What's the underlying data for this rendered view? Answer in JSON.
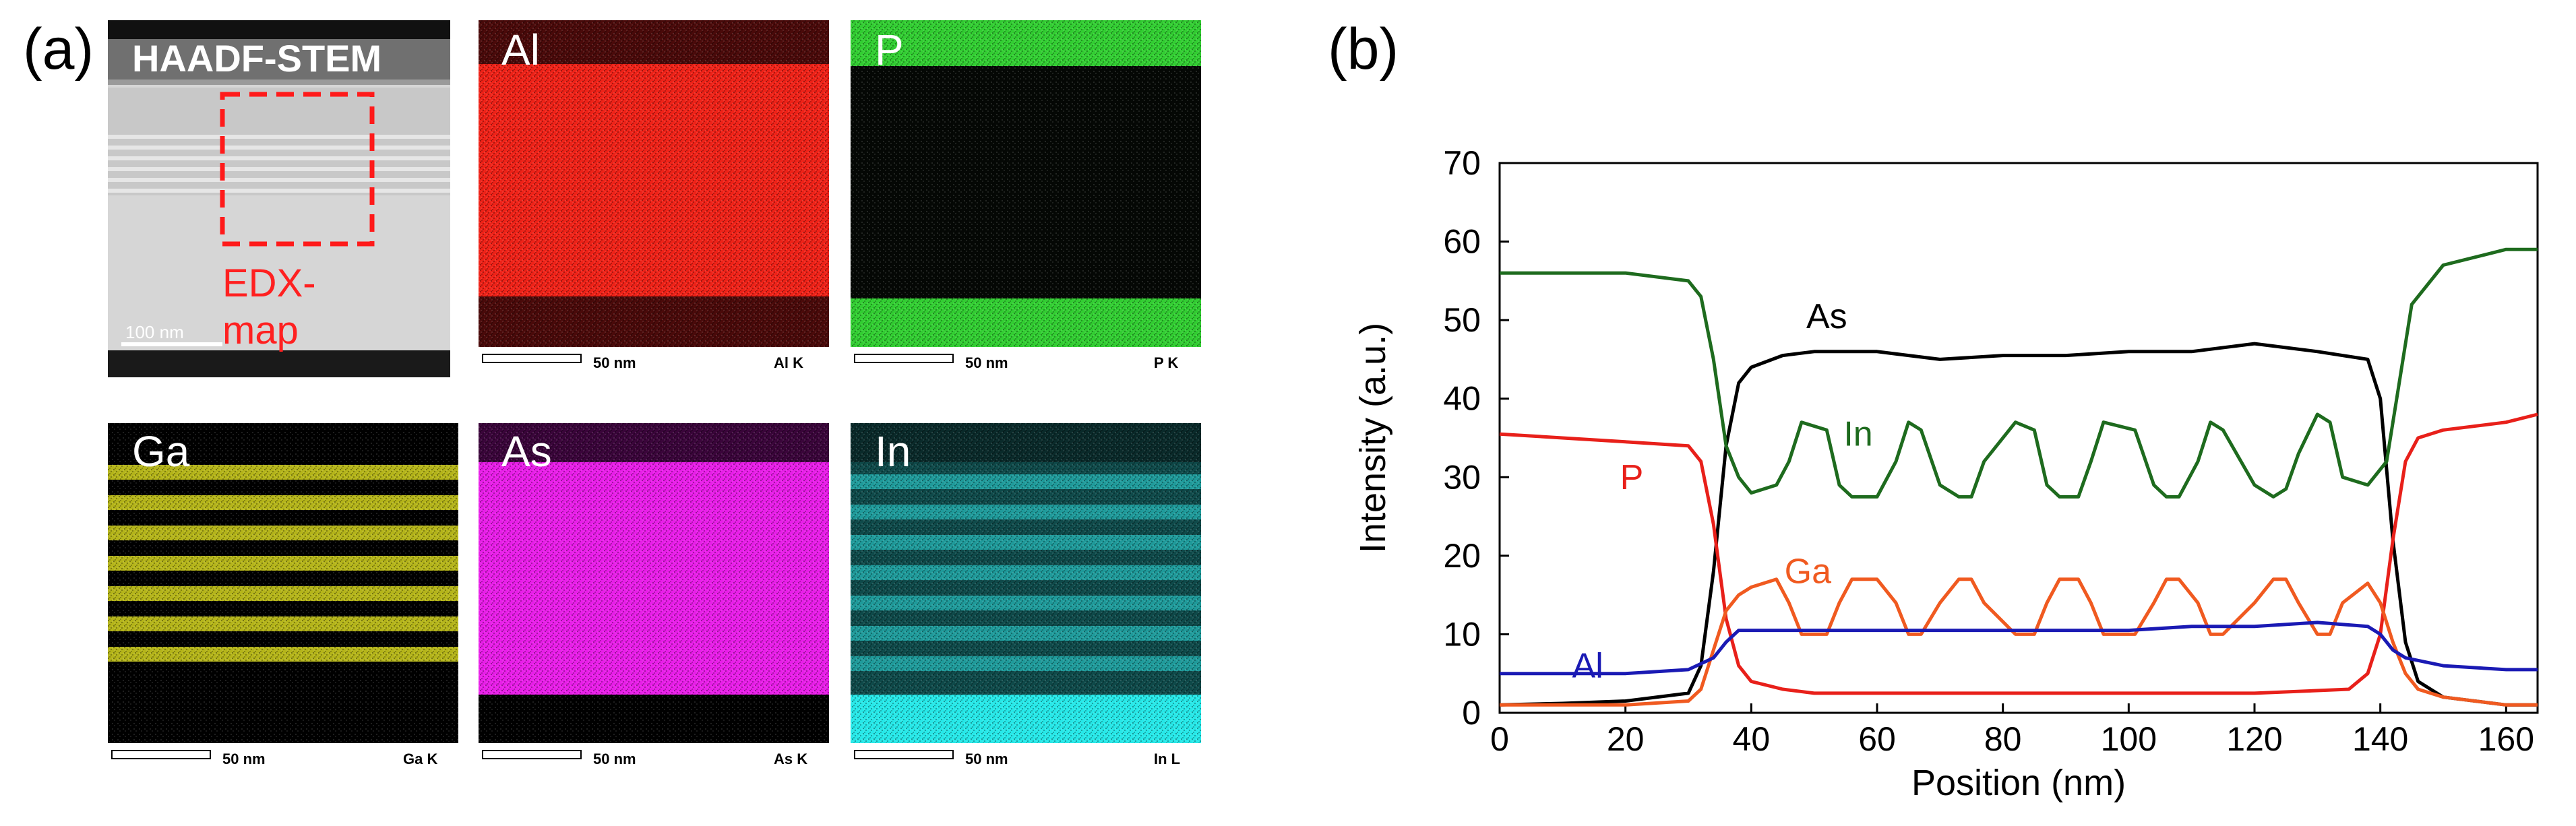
{
  "panel_a": {
    "letter": "(a)",
    "tiles": [
      {
        "id": "haadf",
        "label": "HAADF-STEM",
        "scale_text": "100 nm",
        "channel": "",
        "overlay_text_1": "EDX-",
        "overlay_text_2": "map"
      },
      {
        "id": "al",
        "label": "Al",
        "scale_text": "50 nm",
        "channel": "Al K",
        "color": "#ff2a20"
      },
      {
        "id": "p",
        "label": "P",
        "scale_text": "50 nm",
        "channel": "P K",
        "color": "#3cdc3c"
      },
      {
        "id": "ga",
        "label": "Ga",
        "scale_text": "50 nm",
        "channel": "Ga K",
        "color": "#c8c81e"
      },
      {
        "id": "as",
        "label": "As",
        "scale_text": "50 nm",
        "channel": "As K",
        "color": "#ff20ff"
      },
      {
        "id": "in",
        "label": "In",
        "scale_text": "50 nm",
        "channel": "In L",
        "color": "#28f0f0"
      }
    ]
  },
  "panel_b": {
    "letter": "(b)"
  },
  "chart_data": {
    "type": "line",
    "title": "",
    "xlabel": "Position (nm)",
    "ylabel": "Intensity (a.u.)",
    "xlim": [
      0,
      165
    ],
    "ylim": [
      0,
      70
    ],
    "xticks": [
      0,
      20,
      40,
      60,
      80,
      100,
      120,
      140,
      160
    ],
    "yticks": [
      0,
      10,
      20,
      30,
      40,
      50,
      60,
      70
    ],
    "grid": false,
    "series": [
      {
        "name": "As",
        "color": "#000000",
        "x": [
          0,
          10,
          20,
          30,
          32,
          34,
          36,
          38,
          40,
          45,
          50,
          60,
          70,
          80,
          90,
          100,
          110,
          120,
          130,
          138,
          140,
          142,
          144,
          146,
          150,
          160,
          165
        ],
        "y": [
          1,
          1.2,
          1.5,
          2.5,
          6,
          18,
          34,
          42,
          44,
          45.5,
          46,
          46,
          45,
          45.5,
          45.5,
          46,
          46,
          47,
          46,
          45,
          40,
          22,
          9,
          4,
          2,
          1,
          1
        ]
      },
      {
        "name": "In",
        "color": "#1e6b1e",
        "x": [
          0,
          10,
          20,
          30,
          32,
          34,
          36,
          38,
          40,
          44,
          46,
          48,
          52,
          54,
          56,
          60,
          63,
          65,
          67,
          70,
          73,
          75,
          77,
          82,
          85,
          87,
          89,
          92,
          94,
          96,
          101,
          104,
          106,
          108,
          111,
          113,
          115,
          120,
          123,
          125,
          127,
          130,
          132,
          134,
          138,
          141,
          143,
          145,
          150,
          160,
          165
        ],
        "y": [
          56,
          56,
          56,
          55,
          53,
          45,
          34,
          30,
          28,
          29,
          32,
          37,
          36,
          29,
          27.5,
          27.5,
          32,
          37,
          36,
          29,
          27.5,
          27.5,
          32,
          37,
          36,
          29,
          27.5,
          27.5,
          32,
          37,
          36,
          29,
          27.5,
          27.5,
          32,
          37,
          36,
          29,
          27.5,
          28.5,
          33,
          38,
          37,
          30,
          29,
          32,
          42,
          52,
          57,
          59,
          59
        ]
      },
      {
        "name": "P",
        "color": "#e8201a",
        "x": [
          0,
          10,
          20,
          30,
          32,
          34,
          36,
          38,
          40,
          45,
          50,
          60,
          80,
          100,
          120,
          135,
          138,
          140,
          142,
          144,
          146,
          150,
          160,
          165
        ],
        "y": [
          35.5,
          35,
          34.5,
          34,
          32,
          24,
          12,
          6,
          4,
          3,
          2.5,
          2.5,
          2.5,
          2.5,
          2.5,
          3,
          5,
          10,
          22,
          32,
          35,
          36,
          37,
          38
        ]
      },
      {
        "name": "Ga",
        "color": "#f05a20",
        "x": [
          0,
          10,
          20,
          30,
          32,
          34,
          36,
          38,
          40,
          44,
          46,
          48,
          52,
          54,
          56,
          60,
          63,
          65,
          67,
          70,
          73,
          75,
          77,
          82,
          85,
          87,
          89,
          92,
          94,
          96,
          101,
          104,
          106,
          108,
          111,
          113,
          115,
          120,
          123,
          125,
          127,
          130,
          132,
          134,
          138,
          140,
          142,
          144,
          146,
          150,
          160,
          165
        ],
        "y": [
          1,
          1,
          1,
          1.5,
          3,
          8,
          13,
          15,
          16,
          17,
          14,
          10,
          10,
          14,
          17,
          17,
          14,
          10,
          10,
          14,
          17,
          17,
          14,
          10,
          10,
          14,
          17,
          17,
          14,
          10,
          10,
          14,
          17,
          17,
          14,
          10,
          10,
          14,
          17,
          17,
          14,
          10,
          10,
          14,
          16.5,
          14,
          9,
          5,
          3,
          2,
          1,
          1
        ]
      },
      {
        "name": "Al",
        "color": "#1a1ab4",
        "x": [
          0,
          10,
          20,
          30,
          34,
          36,
          38,
          40,
          50,
          60,
          70,
          80,
          90,
          100,
          110,
          120,
          130,
          138,
          140,
          142,
          144,
          150,
          160,
          165
        ],
        "y": [
          5,
          5,
          5,
          5.5,
          7,
          9,
          10.5,
          10.5,
          10.5,
          10.5,
          10.5,
          10.5,
          10.5,
          10.5,
          11,
          11,
          11.5,
          11,
          10,
          8,
          7,
          6,
          5.5,
          5.5
        ]
      }
    ],
    "annotations": [
      {
        "text": "As",
        "x": 52,
        "y": 49
      },
      {
        "text": "In",
        "x": 57,
        "y": 34
      },
      {
        "text": "P",
        "x": 21,
        "y": 28.5
      },
      {
        "text": "Ga",
        "x": 49,
        "y": 16.5
      },
      {
        "text": "Al",
        "x": 14,
        "y": 4.5
      }
    ]
  }
}
